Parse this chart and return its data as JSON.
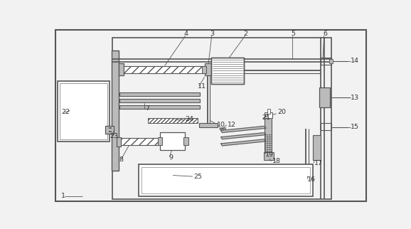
{
  "bg": "#f2f2f2",
  "lc": "#555555",
  "lg": "#999999",
  "llg": "#bbbbbb",
  "white": "#ffffff"
}
